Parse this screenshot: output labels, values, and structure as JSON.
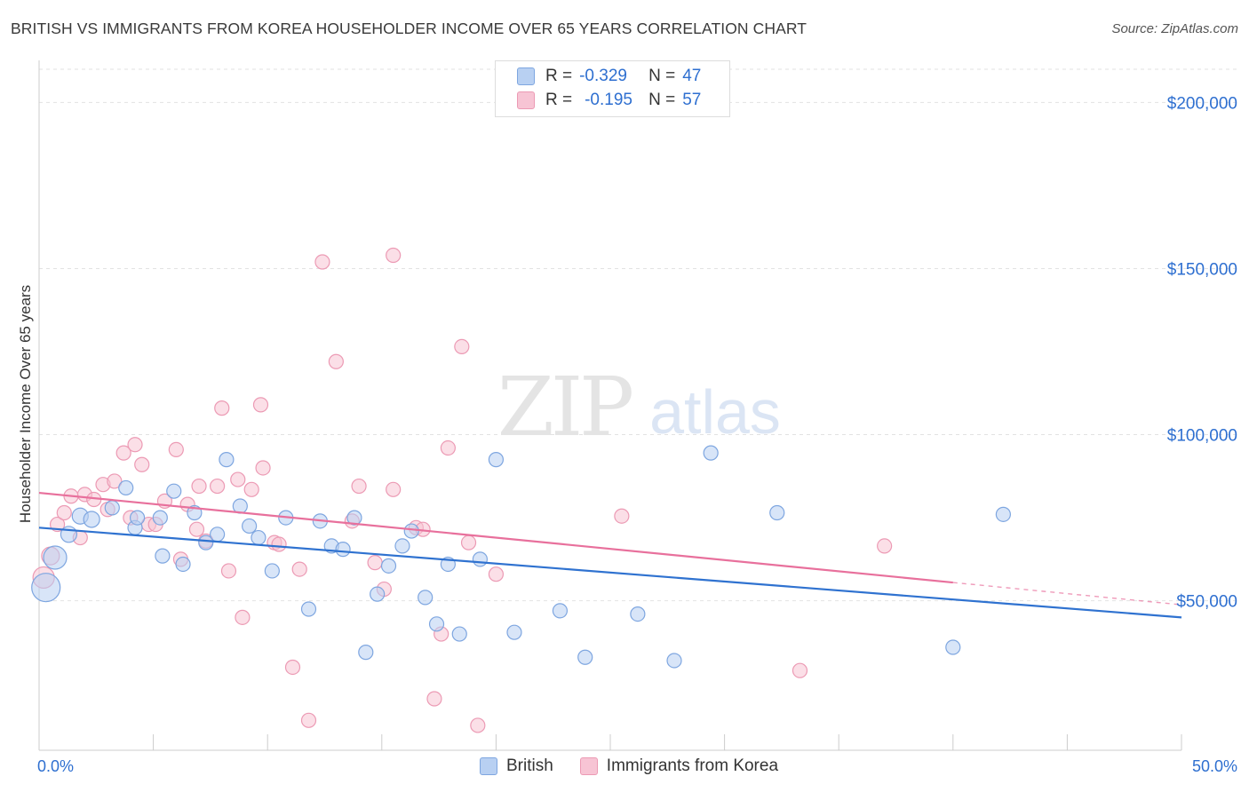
{
  "chart_data": {
    "type": "scatter",
    "title": "BRITISH VS IMMIGRANTS FROM KOREA HOUSEHOLDER INCOME OVER 65 YEARS CORRELATION CHART",
    "source": "Source: ZipAtlas.com",
    "watermark_zip": "ZIP",
    "watermark_atlas": "atlas",
    "xlabel": "",
    "ylabel": "Householder Income Over 65 years",
    "xlim": [
      0,
      50
    ],
    "ylim": [
      5000,
      210000
    ],
    "x_tick_labels": {
      "min": "0.0%",
      "max": "50.0%"
    },
    "y_ticks": [
      {
        "value": 50000,
        "label": "$50,000"
      },
      {
        "value": 100000,
        "label": "$100,000"
      },
      {
        "value": 150000,
        "label": "$150,000"
      },
      {
        "value": 200000,
        "label": "$200,000"
      }
    ],
    "legend": {
      "rows": [
        {
          "r_label": "R =",
          "r_value": "-0.329",
          "n_label": "N =",
          "n_value": "47"
        },
        {
          "r_label": "R =",
          "r_value": "-0.195",
          "n_label": "N =",
          "n_value": "57"
        }
      ]
    },
    "series": [
      {
        "name": "British",
        "color_fill": "#b8d0f2",
        "color_stroke": "#7ea6e0",
        "trend_color": "#2f72d0",
        "trend": {
          "x0": 0,
          "y0": 72000,
          "x1": 50,
          "y1": 45000
        },
        "points": [
          [
            0.3,
            54000,
            16
          ],
          [
            0.7,
            63000,
            13
          ],
          [
            1.3,
            70000,
            9
          ],
          [
            1.8,
            75500,
            9
          ],
          [
            2.3,
            74500,
            9
          ],
          [
            3.2,
            78000,
            8
          ],
          [
            3.8,
            84000,
            8
          ],
          [
            4.2,
            72000,
            8
          ],
          [
            4.3,
            75000,
            8
          ],
          [
            5.3,
            75000,
            8
          ],
          [
            5.4,
            63500,
            8
          ],
          [
            5.9,
            83000,
            8
          ],
          [
            6.3,
            61000,
            8
          ],
          [
            6.8,
            76500,
            8
          ],
          [
            7.3,
            67500,
            8
          ],
          [
            7.8,
            70000,
            8
          ],
          [
            8.2,
            92500,
            8
          ],
          [
            8.8,
            78500,
            8
          ],
          [
            9.2,
            72500,
            8
          ],
          [
            9.6,
            69000,
            8
          ],
          [
            10.2,
            59000,
            8
          ],
          [
            10.8,
            75000,
            8
          ],
          [
            11.8,
            47500,
            8
          ],
          [
            12.3,
            74000,
            8
          ],
          [
            12.8,
            66500,
            8
          ],
          [
            13.3,
            65500,
            8
          ],
          [
            13.8,
            75000,
            8
          ],
          [
            14.3,
            34500,
            8
          ],
          [
            14.8,
            52000,
            8
          ],
          [
            15.3,
            60500,
            8
          ],
          [
            15.9,
            66500,
            8
          ],
          [
            16.3,
            71000,
            8
          ],
          [
            16.9,
            51000,
            8
          ],
          [
            17.4,
            43000,
            8
          ],
          [
            17.9,
            61000,
            8
          ],
          [
            18.4,
            40000,
            8
          ],
          [
            19.3,
            62500,
            8
          ],
          [
            20.0,
            92500,
            8
          ],
          [
            20.8,
            40500,
            8
          ],
          [
            22.8,
            47000,
            8
          ],
          [
            23.9,
            33000,
            8
          ],
          [
            26.2,
            46000,
            8
          ],
          [
            27.8,
            32000,
            8
          ],
          [
            29.4,
            94500,
            8
          ],
          [
            32.3,
            76500,
            8
          ],
          [
            40.0,
            36000,
            8
          ],
          [
            42.2,
            76000,
            8
          ]
        ]
      },
      {
        "name": "Immigrants from Korea",
        "color_fill": "#f7c4d4",
        "color_stroke": "#ec9ab4",
        "trend_color": "#e8709c",
        "trend": {
          "x0": 0,
          "y0": 82500,
          "x1": 40,
          "y1": 55500
        },
        "trend_dashed_to": {
          "x": 50,
          "y": 48800
        },
        "points": [
          [
            0.2,
            57000,
            12
          ],
          [
            0.5,
            63500,
            10
          ],
          [
            0.8,
            73000,
            8
          ],
          [
            1.1,
            76500,
            8
          ],
          [
            1.4,
            81500,
            8
          ],
          [
            1.8,
            69000,
            8
          ],
          [
            2.0,
            82000,
            8
          ],
          [
            2.4,
            80500,
            8
          ],
          [
            2.8,
            85000,
            8
          ],
          [
            3.0,
            77500,
            8
          ],
          [
            3.3,
            86000,
            8
          ],
          [
            3.7,
            94500,
            8
          ],
          [
            4.0,
            75000,
            8
          ],
          [
            4.2,
            97000,
            8
          ],
          [
            4.5,
            91000,
            8
          ],
          [
            4.8,
            73000,
            8
          ],
          [
            5.1,
            73000,
            8
          ],
          [
            5.5,
            80000,
            8
          ],
          [
            6.0,
            95500,
            8
          ],
          [
            6.2,
            62500,
            8
          ],
          [
            6.5,
            79000,
            8
          ],
          [
            6.9,
            71500,
            8
          ],
          [
            7.0,
            84500,
            8
          ],
          [
            7.3,
            68000,
            8
          ],
          [
            7.8,
            84500,
            8
          ],
          [
            8.0,
            108000,
            8
          ],
          [
            8.3,
            59000,
            8
          ],
          [
            8.7,
            86500,
            8
          ],
          [
            8.9,
            45000,
            8
          ],
          [
            9.3,
            83500,
            8
          ],
          [
            9.7,
            109000,
            8
          ],
          [
            9.8,
            90000,
            8
          ],
          [
            10.3,
            67500,
            8
          ],
          [
            10.5,
            67000,
            8
          ],
          [
            11.1,
            30000,
            8
          ],
          [
            11.4,
            59500,
            8
          ],
          [
            11.8,
            14000,
            8
          ],
          [
            12.4,
            152000,
            8
          ],
          [
            13.0,
            122000,
            8
          ],
          [
            13.7,
            74000,
            8
          ],
          [
            14.0,
            84500,
            8
          ],
          [
            14.7,
            61500,
            8
          ],
          [
            15.1,
            53500,
            8
          ],
          [
            15.5,
            154000,
            8
          ],
          [
            15.5,
            83500,
            8
          ],
          [
            16.5,
            72000,
            8
          ],
          [
            16.8,
            71500,
            8
          ],
          [
            17.3,
            20500,
            8
          ],
          [
            17.6,
            40000,
            8
          ],
          [
            17.9,
            96000,
            8
          ],
          [
            18.5,
            126500,
            8
          ],
          [
            18.8,
            67500,
            8
          ],
          [
            19.2,
            12500,
            8
          ],
          [
            20.0,
            58000,
            8
          ],
          [
            25.5,
            75500,
            8
          ],
          [
            33.3,
            29000,
            8
          ],
          [
            37.0,
            66500,
            8
          ]
        ]
      }
    ]
  }
}
